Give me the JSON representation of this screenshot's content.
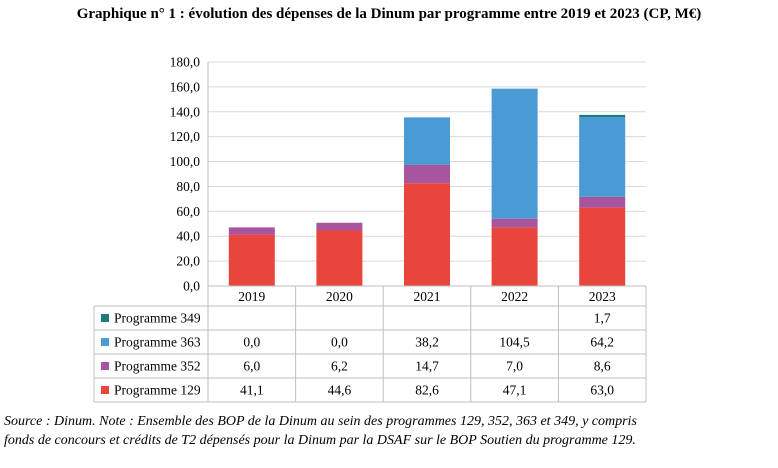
{
  "title": "Graphique n° 1 :  évolution des dépenses de la Dinum par programme entre 2019 et 2023 (CP, M€)",
  "source": {
    "line1": "Source : Dinum. Note : Ensemble des BOP de la Dinum au sein des programmes 129, 352, 363 et 349, y compris",
    "line2": "fonds de concours et crédits de T2 dépensés pour la Dinum par la DSAF sur le BOP Soutien du programme 129."
  },
  "chart_data": {
    "type": "bar",
    "stacked": true,
    "categories": [
      "2019",
      "2020",
      "2021",
      "2022",
      "2023"
    ],
    "ylim": [
      0,
      180
    ],
    "yticks": [
      "0,0",
      "20,0",
      "40,0",
      "60,0",
      "80,0",
      "100,0",
      "120,0",
      "140,0",
      "160,0",
      "180,0"
    ],
    "grid": true,
    "series": [
      {
        "name": "Programme 129",
        "color": "#e8463d",
        "values": [
          41.1,
          44.6,
          82.6,
          47.1,
          63.0
        ],
        "labels": [
          "41,1",
          "44,6",
          "82,6",
          "47,1",
          "63,0"
        ]
      },
      {
        "name": "Programme 352",
        "color": "#a8559e",
        "values": [
          6.0,
          6.2,
          14.7,
          7.0,
          8.6
        ],
        "labels": [
          "6,0",
          "6,2",
          "14,7",
          "7,0",
          "8,6"
        ]
      },
      {
        "name": "Programme 363",
        "color": "#4a9bd4",
        "values": [
          0.0,
          0.0,
          38.2,
          104.5,
          64.2
        ],
        "labels": [
          "0,0",
          "0,0",
          "38,2",
          "104,5",
          "64,2"
        ]
      },
      {
        "name": "Programme 349",
        "color": "#1f7a78",
        "values": [
          0,
          0,
          0,
          0,
          1.7
        ],
        "labels": [
          "",
          "",
          "",
          "",
          "1,7"
        ]
      }
    ],
    "data_table": true
  }
}
